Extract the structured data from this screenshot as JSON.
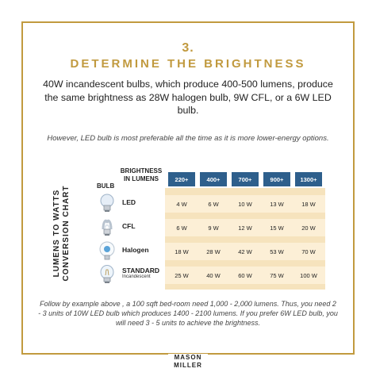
{
  "step_number": "3.",
  "title": "DETERMINE THE BRIGHTNESS",
  "intro": "40W incandescent bulbs, which produce 400-500 lumens, produce the same brightness as 28W halogen bulb, 9W CFL, or a 6W LED bulb.",
  "note": "However, LED bulb is most preferable all the time as it is more lower-energy options.",
  "chart": {
    "side_title_line1": "LUMENS TO WATTS",
    "side_title_line2": "CONVERSION CHART",
    "bulb_header": "BULB",
    "brightness_header_line1": "BRIGHTNESS",
    "brightness_header_line2": "IN LUMENS",
    "columns": [
      "220+",
      "400+",
      "700+",
      "900+",
      "1300+"
    ],
    "header_color": "#2e5f8c",
    "rows": [
      {
        "label": "LED",
        "sub": "",
        "icon": "led-bulb-icon",
        "values": [
          "4 W",
          "6 W",
          "10 W",
          "13 W",
          "18 W"
        ]
      },
      {
        "label": "CFL",
        "sub": "",
        "icon": "cfl-bulb-icon",
        "values": [
          "6 W",
          "9 W",
          "12 W",
          "15 W",
          "20 W"
        ]
      },
      {
        "label": "Halogen",
        "sub": "",
        "icon": "halogen-bulb-icon",
        "values": [
          "18 W",
          "28 W",
          "42 W",
          "53 W",
          "70 W"
        ]
      },
      {
        "label": "STANDARD",
        "sub": "Incandescent",
        "icon": "incandescent-bulb-icon",
        "values": [
          "25 W",
          "40 W",
          "60 W",
          "75 W",
          "100 W"
        ]
      }
    ]
  },
  "footnote": "Follow by example above , a 100 sqft bed-room need 1,000 - 2,000 lumens. Thus, you need 2 - 3 units of 10W LED bulb which produces 1400 - 2100 lumens. If you prefer 6W LED bulb, you will need 3 - 5 units to achieve the brightness.",
  "logo_line1": "MASON",
  "logo_line2": "MILLER",
  "accent_color": "#c19a3f"
}
